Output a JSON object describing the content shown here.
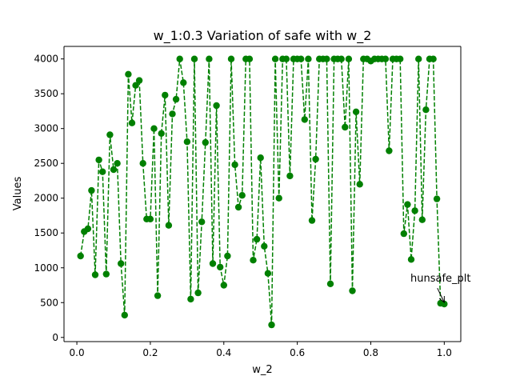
{
  "chart_data": {
    "type": "line",
    "title": "w_1:0.3 Variation of safe with w_2",
    "xlabel": "w_2",
    "ylabel": "Values",
    "xlim": [
      -0.035,
      1.045
    ],
    "ylim": [
      -60,
      4180
    ],
    "xticks": [
      0.0,
      0.2,
      0.4,
      0.6,
      0.8,
      1.0
    ],
    "xtick_labels": [
      "0.0",
      "0.2",
      "0.4",
      "0.6",
      "0.8",
      "1.0"
    ],
    "yticks": [
      0,
      500,
      1000,
      1500,
      2000,
      2500,
      3000,
      3500,
      4000
    ],
    "ytick_labels": [
      "0",
      "500",
      "1000",
      "1500",
      "2000",
      "2500",
      "3000",
      "3500",
      "4000"
    ],
    "grid": false,
    "series": [
      {
        "color": "#008000",
        "line_style": "dashed",
        "marker": "circle",
        "x": [
          0.01,
          0.02,
          0.03,
          0.04,
          0.05,
          0.06,
          0.07,
          0.08,
          0.09,
          0.1,
          0.11,
          0.12,
          0.13,
          0.14,
          0.15,
          0.16,
          0.17,
          0.18,
          0.19,
          0.2,
          0.21,
          0.22,
          0.23,
          0.24,
          0.25,
          0.26,
          0.27,
          0.28,
          0.29,
          0.3,
          0.31,
          0.32,
          0.33,
          0.34,
          0.35,
          0.36,
          0.37,
          0.38,
          0.39,
          0.4,
          0.41,
          0.42,
          0.43,
          0.44,
          0.45,
          0.46,
          0.47,
          0.48,
          0.49,
          0.5,
          0.51,
          0.52,
          0.53,
          0.54,
          0.55,
          0.56,
          0.57,
          0.58,
          0.59,
          0.6,
          0.61,
          0.62,
          0.63,
          0.64,
          0.65,
          0.66,
          0.67,
          0.68,
          0.69,
          0.7,
          0.71,
          0.72,
          0.73,
          0.74,
          0.75,
          0.76,
          0.77,
          0.78,
          0.79,
          0.8,
          0.81,
          0.82,
          0.83,
          0.84,
          0.85,
          0.86,
          0.87,
          0.88,
          0.89,
          0.9,
          0.91,
          0.92,
          0.93,
          0.94,
          0.95,
          0.96,
          0.97,
          0.98,
          0.99,
          1.0
        ],
        "y": [
          1170,
          1520,
          1560,
          2110,
          900,
          2550,
          2380,
          910,
          2910,
          2410,
          2500,
          1060,
          320,
          3780,
          3080,
          3620,
          3690,
          2500,
          1700,
          1700,
          3000,
          600,
          2930,
          3480,
          1610,
          3210,
          3420,
          4000,
          3660,
          2810,
          550,
          4000,
          640,
          1660,
          2800,
          4000,
          1060,
          3330,
          1010,
          750,
          1170,
          4000,
          2480,
          1870,
          2040,
          4000,
          4000,
          1110,
          1410,
          2580,
          1310,
          920,
          180,
          4000,
          2000,
          4000,
          4000,
          2320,
          4000,
          4000,
          4000,
          3130,
          4000,
          1680,
          2560,
          4000,
          4000,
          4000,
          770,
          4000,
          4000,
          4000,
          3020,
          4000,
          670,
          3240,
          2200,
          4000,
          4000,
          3970,
          4000,
          4000,
          4000,
          4000,
          2680,
          4000,
          4000,
          4000,
          1490,
          1910,
          1120,
          1820,
          4000,
          1690,
          3270,
          4000,
          4000,
          1990,
          490,
          480
        ]
      }
    ],
    "annotations": [
      {
        "text": "hunsafe_plt",
        "x": 0.99,
        "y": 800,
        "arrow_to": [
          1.0,
          480
        ]
      }
    ]
  }
}
